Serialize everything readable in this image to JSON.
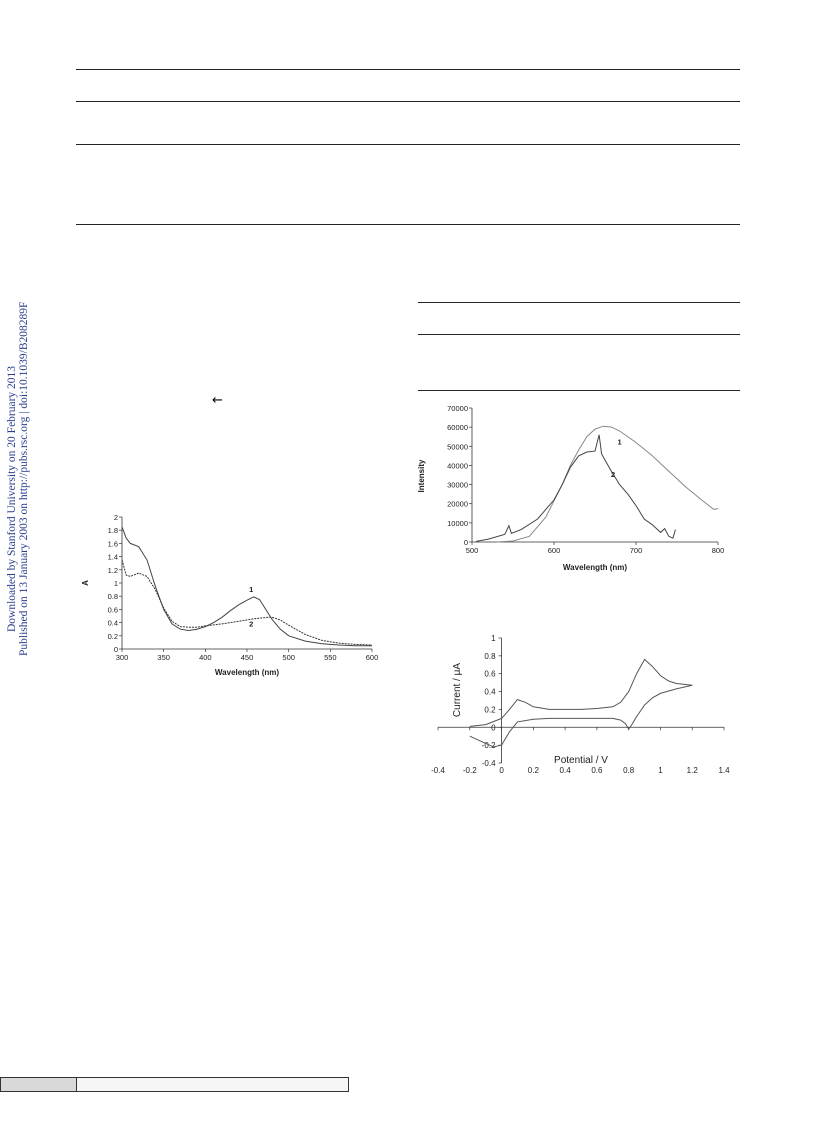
{
  "side_note": {
    "line1": "Downloaded by Stanford University on 20 February 2013",
    "line2": "Published on 13 January 2003 on http://pubs.rsc.org | doi:10.1039/B208289F"
  },
  "arrow_glyph": "←",
  "chart_data": [
    {
      "type": "line",
      "xlabel": "Wavelength (nm)",
      "ylabel": "A",
      "xlim": [
        300,
        600
      ],
      "ylim": [
        0,
        2
      ],
      "xticks": [
        300,
        350,
        400,
        450,
        500,
        550,
        600
      ],
      "yticks": [
        0,
        0.2,
        0.4,
        0.6,
        0.8,
        1,
        1.2,
        1.4,
        1.6,
        1.8,
        2
      ],
      "series": [
        {
          "name": "1",
          "x": [
            300,
            305,
            310,
            320,
            330,
            340,
            350,
            360,
            370,
            380,
            390,
            400,
            410,
            420,
            430,
            440,
            450,
            458,
            465,
            470,
            480,
            490,
            500,
            520,
            540,
            560,
            580,
            600
          ],
          "y": [
            1.85,
            1.68,
            1.6,
            1.55,
            1.35,
            0.95,
            0.6,
            0.38,
            0.3,
            0.28,
            0.3,
            0.34,
            0.4,
            0.48,
            0.58,
            0.67,
            0.74,
            0.79,
            0.75,
            0.65,
            0.45,
            0.3,
            0.2,
            0.12,
            0.08,
            0.06,
            0.05,
            0.05
          ]
        },
        {
          "name": "2",
          "x": [
            300,
            305,
            310,
            320,
            330,
            340,
            350,
            360,
            370,
            380,
            390,
            400,
            420,
            440,
            460,
            475,
            480,
            490,
            500,
            520,
            540,
            560,
            580,
            600
          ],
          "y": [
            1.35,
            1.12,
            1.1,
            1.15,
            1.1,
            0.9,
            0.62,
            0.42,
            0.34,
            0.33,
            0.33,
            0.35,
            0.38,
            0.42,
            0.46,
            0.48,
            0.48,
            0.44,
            0.36,
            0.22,
            0.13,
            0.09,
            0.07,
            0.06
          ]
        }
      ],
      "labels": [
        {
          "text": "1",
          "x": 455,
          "y": 0.86
        },
        {
          "text": "2",
          "x": 455,
          "y": 0.34
        }
      ]
    },
    {
      "type": "line",
      "xlabel": "Wavelength (nm)",
      "ylabel": "Intensity",
      "xlim": [
        500,
        800
      ],
      "ylim": [
        0,
        70000
      ],
      "xticks": [
        500,
        600,
        700,
        800
      ],
      "yticks": [
        0,
        10000,
        20000,
        30000,
        40000,
        50000,
        60000,
        70000
      ],
      "series": [
        {
          "name": "1",
          "x": [
            530,
            550,
            570,
            590,
            610,
            620,
            630,
            640,
            650,
            660,
            670,
            680,
            700,
            720,
            740,
            760,
            780,
            795,
            800
          ],
          "y": [
            0,
            500,
            3000,
            13000,
            30000,
            40000,
            48000,
            55000,
            59000,
            60500,
            60000,
            58000,
            52000,
            45000,
            37000,
            29000,
            22000,
            17000,
            17500
          ]
        },
        {
          "name": "2",
          "x": [
            505,
            520,
            540,
            545,
            548,
            560,
            580,
            600,
            610,
            620,
            630,
            640,
            650,
            655,
            658,
            662,
            670,
            680,
            690,
            700,
            710,
            720,
            725,
            730,
            735,
            740,
            745,
            748
          ],
          "y": [
            300,
            1500,
            4000,
            8500,
            4500,
            6500,
            12000,
            22000,
            30000,
            39000,
            45000,
            47000,
            47500,
            56000,
            46000,
            43000,
            37000,
            30000,
            25000,
            19000,
            12000,
            9000,
            7000,
            5000,
            7000,
            3000,
            2000,
            6500
          ]
        }
      ],
      "labels": [
        {
          "text": "1",
          "x": 680,
          "y": 51000
        },
        {
          "text": "2",
          "x": 672,
          "y": 34000
        }
      ]
    },
    {
      "type": "line",
      "xlabel": "Potential / V",
      "ylabel": "Current / μA",
      "xlim": [
        -0.4,
        1.4
      ],
      "ylim": [
        -0.4,
        1
      ],
      "xticks": [
        -0.4,
        -0.2,
        0,
        0.2,
        0.4,
        0.6,
        0.8,
        1,
        1.2,
        1.4
      ],
      "xticklabels": [
        "-0.4",
        "-0.2",
        "0",
        "0.2",
        "0.4",
        "0.6",
        "0.8",
        "1",
        "1.2",
        "1.4"
      ],
      "yticks": [
        -0.4,
        -0.2,
        0,
        0.2,
        0.4,
        0.6,
        0.8,
        1
      ],
      "yticklabels": [
        "-0.4",
        "-0.2",
        "0",
        "0.2",
        "0.4",
        "0.6",
        "0.8",
        "1"
      ],
      "series": [
        {
          "name": "",
          "x": [
            -0.2,
            -0.1,
            0,
            0.05,
            0.1,
            0.15,
            0.2,
            0.3,
            0.4,
            0.5,
            0.6,
            0.7,
            0.75,
            0.8,
            0.85,
            0.9,
            0.95,
            1.0,
            1.05,
            1.1,
            1.2
          ],
          "y": [
            0.01,
            0.03,
            0.1,
            0.2,
            0.31,
            0.28,
            0.23,
            0.2,
            0.2,
            0.2,
            0.21,
            0.23,
            0.28,
            0.4,
            0.6,
            0.76,
            0.68,
            0.58,
            0.52,
            0.49,
            0.47
          ]
        },
        {
          "name": "",
          "x": [
            1.2,
            1.1,
            1.0,
            0.95,
            0.9,
            0.85,
            0.82,
            0.8,
            0.78,
            0.75,
            0.7,
            0.6,
            0.5,
            0.4,
            0.3,
            0.2,
            0.1,
            0.05,
            0.0,
            -0.05,
            -0.1,
            -0.2
          ],
          "y": [
            0.47,
            0.43,
            0.38,
            0.33,
            0.25,
            0.12,
            0.03,
            -0.02,
            0.04,
            0.08,
            0.1,
            0.1,
            0.1,
            0.1,
            0.1,
            0.09,
            0.06,
            -0.05,
            -0.2,
            -0.22,
            -0.18,
            -0.1
          ]
        }
      ]
    }
  ]
}
